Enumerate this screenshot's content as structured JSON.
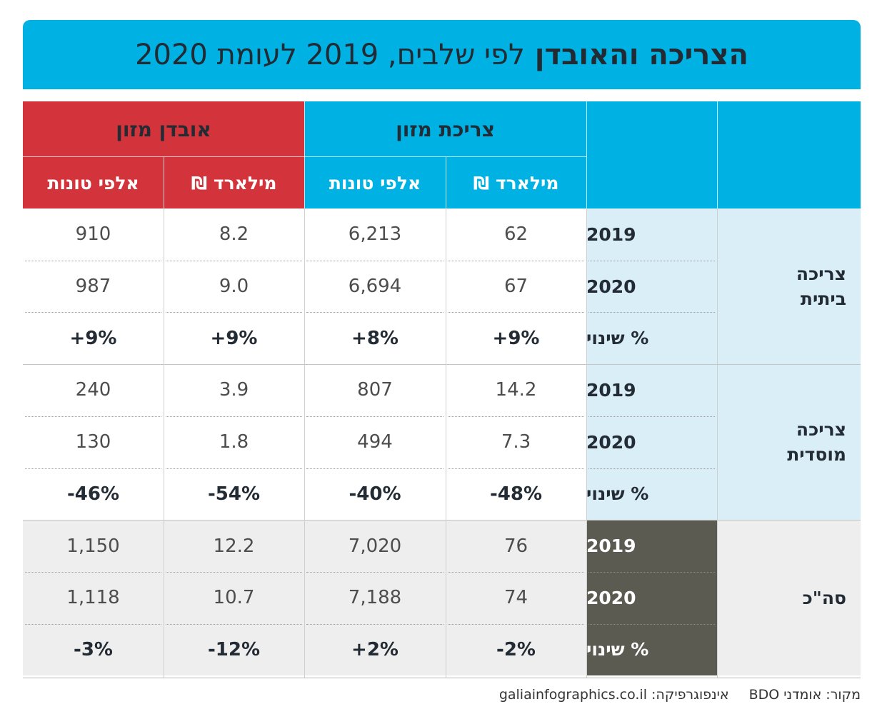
{
  "title": {
    "bold": "הצריכה והאובדן",
    "light": "לפי שלבים, 2019 לעומת 2020"
  },
  "colors": {
    "blue_header": "#00b2e3",
    "red_header": "#d3333a",
    "light_blue": "#daeef8",
    "gray_row": "#eeeeee",
    "dark_cell": "#5c5b52"
  },
  "chart_data": {
    "type": "table",
    "title": "הצריכה והאובדן לפי שלבים, 2019 לעומת 2020",
    "column_groups": [
      {
        "name": "צריכת מזון",
        "columns": [
          "מילארד ₪",
          "אלפי טונות"
        ]
      },
      {
        "name": "אובדן מזון",
        "columns": [
          "מילארד ₪",
          "אלפי טונות"
        ]
      }
    ],
    "sections": [
      {
        "category": [
          "צריכה",
          "ביתית"
        ],
        "rows": [
          {
            "label": "2019",
            "values": [
              "62",
              "6,213",
              "8.2",
              "910"
            ]
          },
          {
            "label": "2020",
            "values": [
              "67",
              "6,694",
              "9.0",
              "987"
            ]
          },
          {
            "label": "% שינוי",
            "values": [
              "+9%",
              "+8%",
              "+9%",
              "+9%"
            ]
          }
        ]
      },
      {
        "category": [
          "צריכה",
          "מוסדית"
        ],
        "rows": [
          {
            "label": "2019",
            "values": [
              "14.2",
              "807",
              "3.9",
              "240"
            ]
          },
          {
            "label": "2020",
            "values": [
              "7.3",
              "494",
              "1.8",
              "130"
            ]
          },
          {
            "label": "% שינוי",
            "values": [
              "-48%",
              "-40%",
              "-54%",
              "-46%"
            ]
          }
        ]
      },
      {
        "category": [
          "סה\"כ"
        ],
        "rows": [
          {
            "label": "2019",
            "values": [
              "76",
              "7,020",
              "12.2",
              "1,150"
            ]
          },
          {
            "label": "2020",
            "values": [
              "74",
              "7,188",
              "10.7",
              "1,118"
            ]
          },
          {
            "label": "% שינוי",
            "values": [
              "-2%",
              "+2%",
              "-12%",
              "-3%"
            ]
          }
        ]
      }
    ]
  },
  "footer": {
    "source": "מקור: אומדני BDO",
    "credit": "אינפוגרפיקה: galiainfographics.co.il"
  }
}
